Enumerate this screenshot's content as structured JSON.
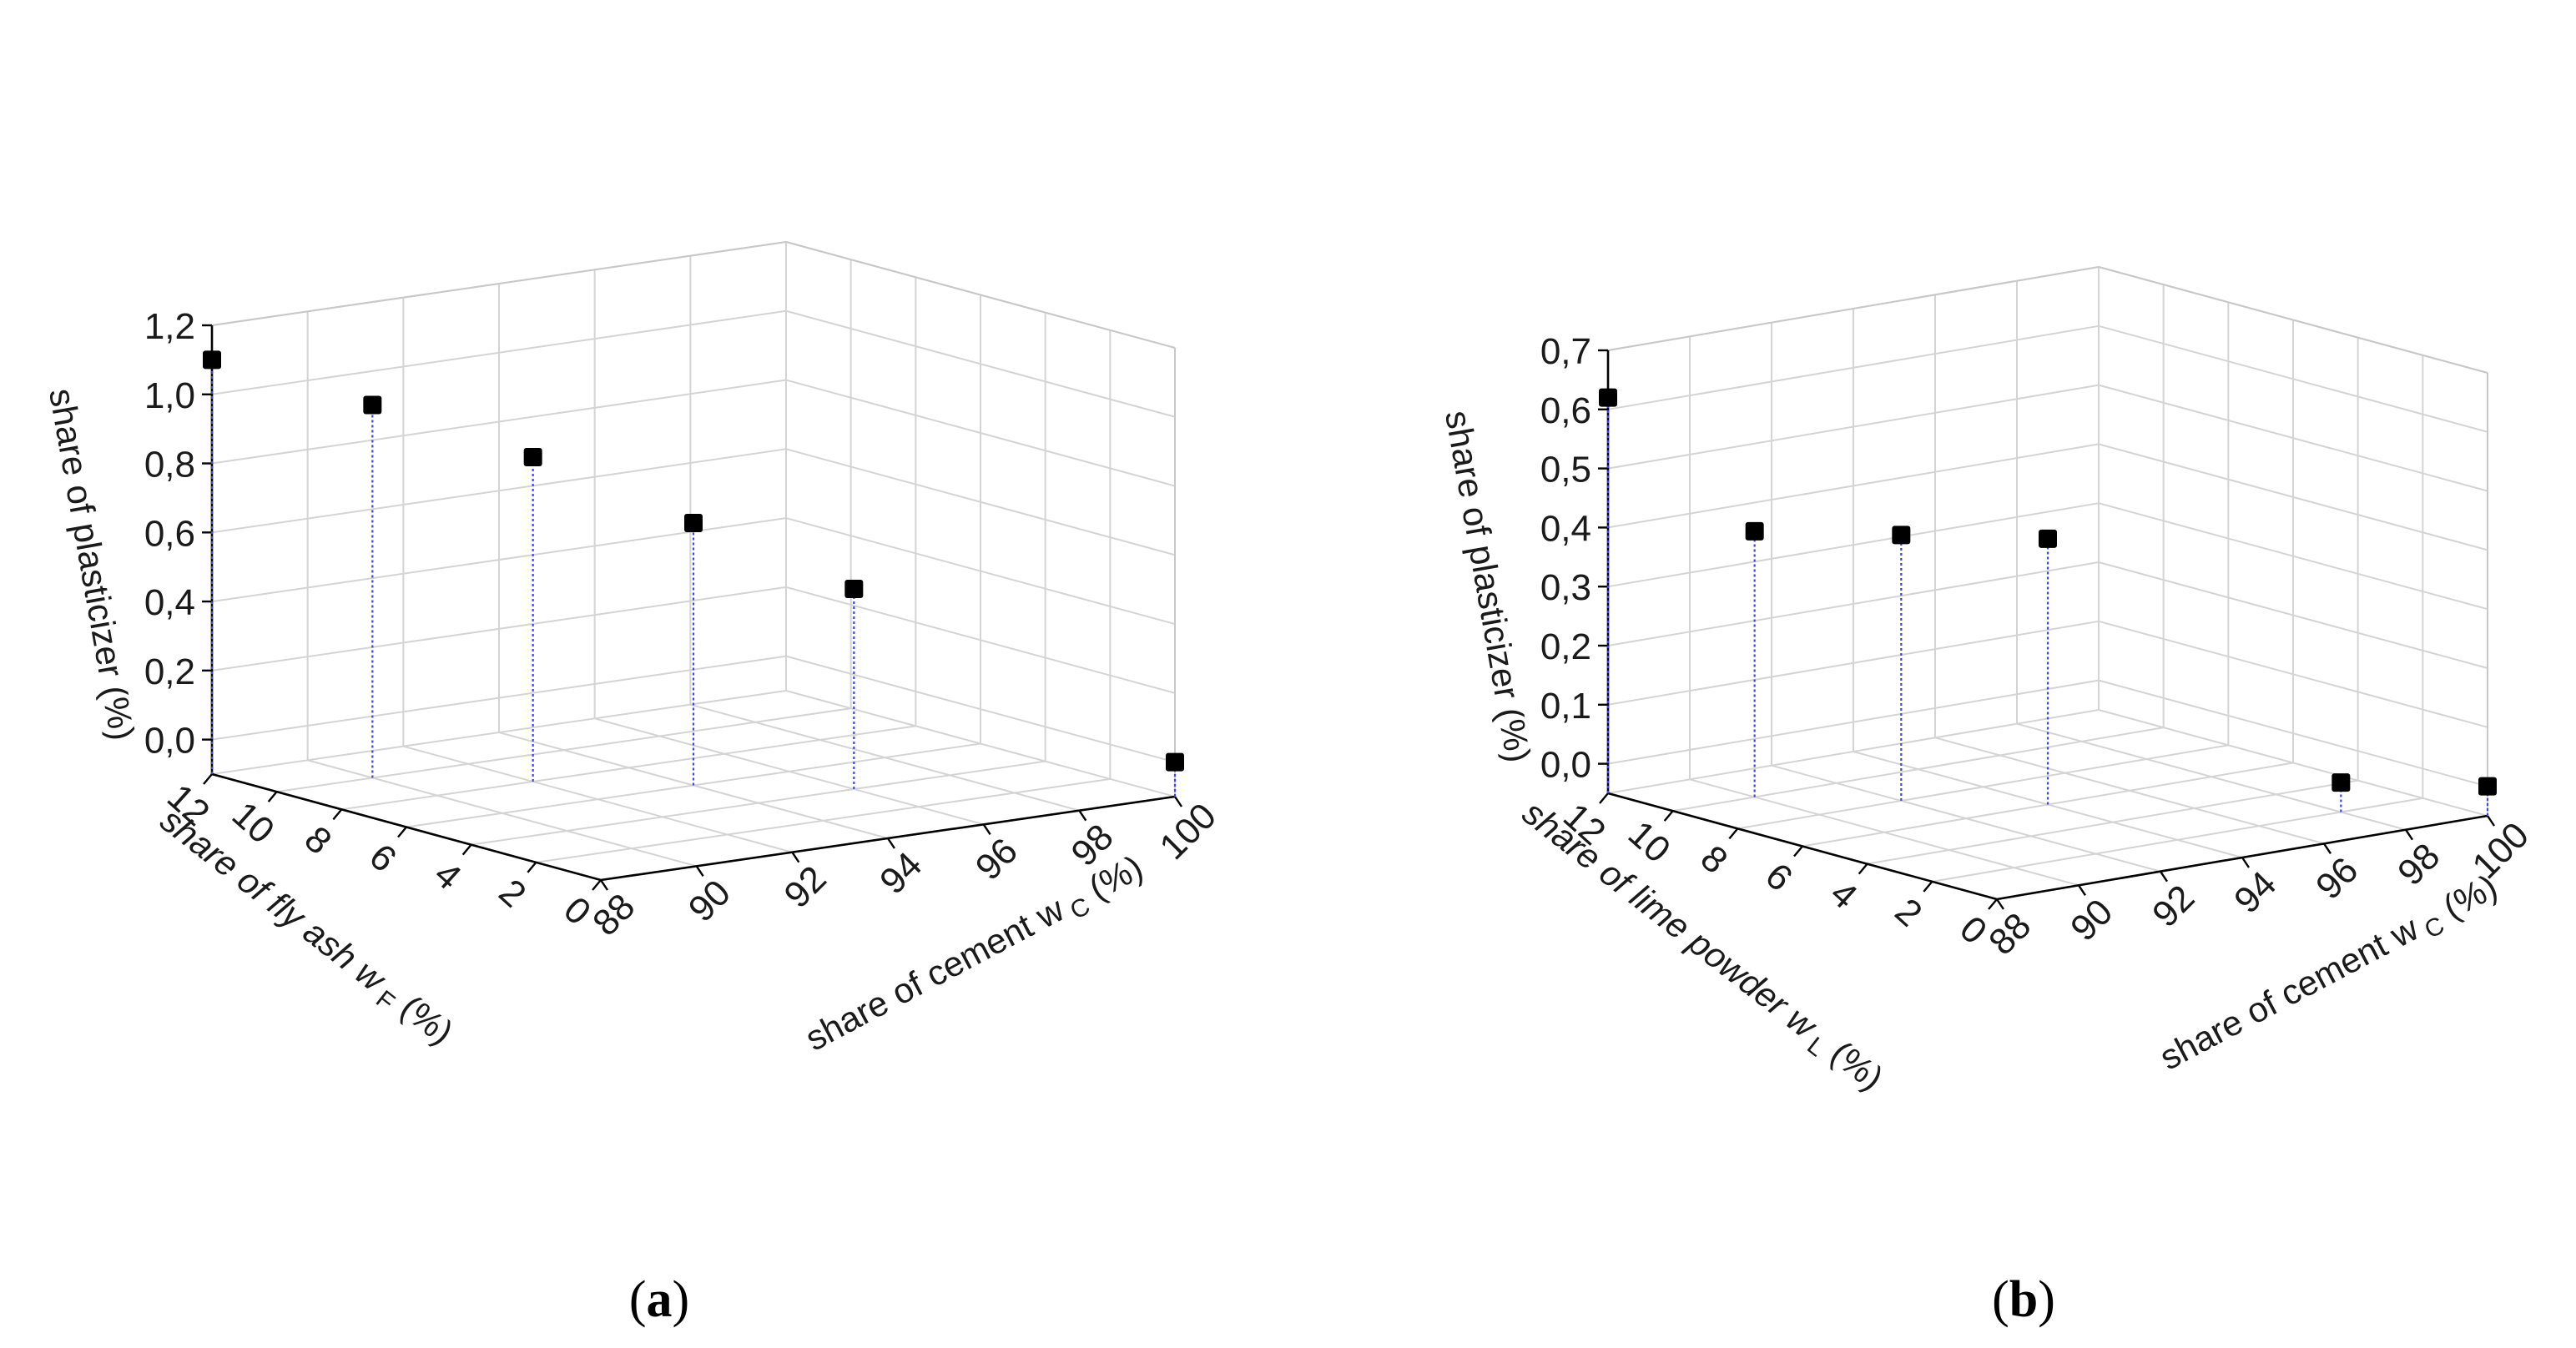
{
  "chart_data": [
    {
      "type": "scatter3d",
      "panel": "(a)",
      "caption_letter": "a",
      "xlabel_main": "share of fly ash w",
      "xlabel_sub": "F",
      "xlabel_tail": " (%)",
      "ylabel_main": "share of cement w",
      "ylabel_sub": "C",
      "ylabel_tail": " (%)",
      "zlabel": "share of plasticizer (%)",
      "x_ticks": [
        "0",
        "2",
        "4",
        "6",
        "8",
        "10",
        "12"
      ],
      "y_ticks": [
        "88",
        "90",
        "92",
        "94",
        "96",
        "98",
        "100"
      ],
      "z_ticks": [
        "0,0",
        "0,2",
        "0,4",
        "0,6",
        "0,8",
        "1,0",
        "1,2"
      ],
      "xlim": [
        0,
        12
      ],
      "ylim": [
        88,
        100
      ],
      "zlim": [
        -0.1,
        1.2
      ],
      "points": [
        {
          "x": 12,
          "y": 88,
          "z": 1.1
        },
        {
          "x": 10,
          "y": 90,
          "z": 0.98
        },
        {
          "x": 8,
          "y": 92,
          "z": 0.84
        },
        {
          "x": 6,
          "y": 94,
          "z": 0.66
        },
        {
          "x": 4,
          "y": 96,
          "z": 0.48
        },
        {
          "x": 0,
          "y": 100,
          "z": 0.0
        }
      ]
    },
    {
      "type": "scatter3d",
      "panel": "(b)",
      "caption_letter": "b",
      "xlabel_main": "share of lime powder w",
      "xlabel_sub": "L",
      "xlabel_tail": " (%)",
      "ylabel_main": "share of cement w",
      "ylabel_sub": "C",
      "ylabel_tail": " (%)",
      "zlabel": "share of plasticizer (%)",
      "x_ticks": [
        "0",
        "2",
        "4",
        "6",
        "8",
        "10",
        "12"
      ],
      "y_ticks": [
        "88",
        "90",
        "92",
        "94",
        "96",
        "98",
        "100"
      ],
      "z_ticks": [
        "0,0",
        "0,1",
        "0,2",
        "0,3",
        "0,4",
        "0,5",
        "0,6",
        "0,7"
      ],
      "xlim": [
        0,
        12
      ],
      "ylim": [
        88,
        100
      ],
      "zlim": [
        -0.05,
        0.7
      ],
      "points": [
        {
          "x": 12,
          "y": 88,
          "z": 0.62
        },
        {
          "x": 10,
          "y": 90,
          "z": 0.4
        },
        {
          "x": 8,
          "y": 92,
          "z": 0.4
        },
        {
          "x": 6,
          "y": 94,
          "z": 0.4
        },
        {
          "x": 2,
          "y": 98,
          "z": 0.0
        },
        {
          "x": 0,
          "y": 100,
          "z": 0.0
        }
      ]
    }
  ]
}
